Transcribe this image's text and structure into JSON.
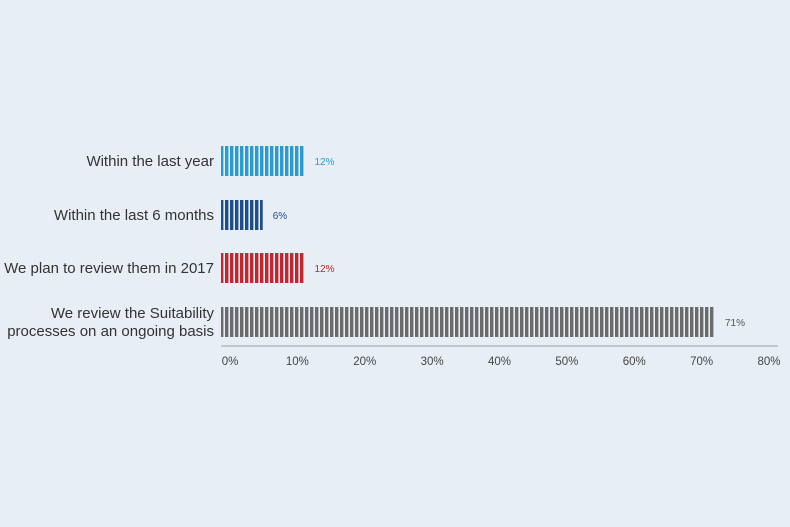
{
  "chart_data": {
    "type": "bar",
    "orientation": "horizontal",
    "title": "",
    "xlabel": "",
    "ylabel": "",
    "categories": [
      [
        "Within the last year"
      ],
      [
        "Within the last 6 months"
      ],
      [
        "We plan to review them in 2017"
      ],
      [
        "We review the Suitability",
        "processes on an ongoing basis"
      ]
    ],
    "values": [
      12,
      6,
      12,
      71
    ],
    "value_labels": [
      "12%",
      "6%",
      "12%",
      "71%"
    ],
    "colors": [
      "#2a9bd1",
      "#1f4e8c",
      "#c4262e",
      "#6b6b6b"
    ],
    "xlim": [
      0,
      80
    ],
    "xticks": [
      0,
      10,
      20,
      30,
      40,
      50,
      60,
      70,
      80
    ],
    "xtick_labels": [
      "0%",
      "10%",
      "20%",
      "30%",
      "40%",
      "50%",
      "60%",
      "70%",
      "80%"
    ],
    "grid": false,
    "legend": "none",
    "bar_pattern": "vertical-stripes"
  }
}
